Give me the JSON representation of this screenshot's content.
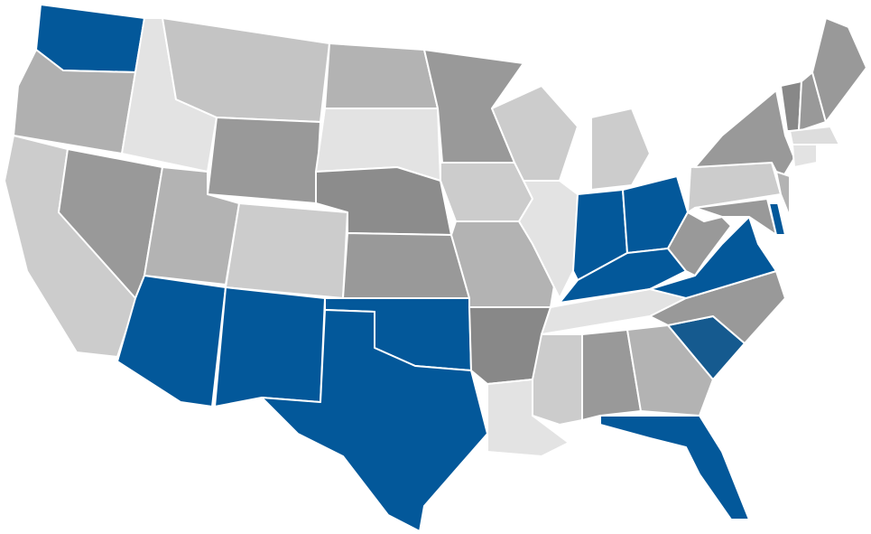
{
  "map": {
    "regions": [
      {
        "color": "#03589a"
      },
      {
        "color": "#b0b0b0"
      },
      {
        "color": "#cccccc"
      },
      {
        "color": "#e3e3e3"
      },
      {
        "color": "#999999"
      },
      {
        "color": "#c4c4c4"
      },
      {
        "color": "#999999"
      },
      {
        "color": "#b3b3b3"
      },
      {
        "color": "#cccccc"
      },
      {
        "color": "#03589a"
      },
      {
        "color": "#03589a"
      },
      {
        "color": "#b3b3b3"
      },
      {
        "color": "#e3e3e3"
      },
      {
        "color": "#8c8c8c"
      },
      {
        "color": "#999999"
      },
      {
        "color": "#03589a"
      },
      {
        "color": "#03589a"
      },
      {
        "color": "#999999"
      },
      {
        "color": "#cccccc"
      },
      {
        "color": "#b3b3b3"
      },
      {
        "color": "#888888"
      },
      {
        "color": "#e3e3e3"
      },
      {
        "color": "#cccccc"
      },
      {
        "color": "#e3e3e3"
      },
      {
        "color": "#cccccc"
      },
      {
        "color": "#03589a"
      },
      {
        "color": "#03589a"
      },
      {
        "color": "#03589a"
      },
      {
        "color": "#e3e3e3"
      },
      {
        "color": "#cccccc"
      },
      {
        "color": "#999999"
      },
      {
        "color": "#b3b3b3"
      },
      {
        "color": "#03589a"
      },
      {
        "color": "#155a8f"
      },
      {
        "color": "#999999"
      },
      {
        "color": "#03589a"
      },
      {
        "color": "#999999"
      },
      {
        "color": "#cccccc"
      },
      {
        "color": "#999999"
      },
      {
        "color": "#999999"
      },
      {
        "color": "#03589a"
      },
      {
        "color": "#b3b3b3"
      },
      {
        "color": "#888888"
      },
      {
        "color": "#999999"
      },
      {
        "color": "#999999"
      },
      {
        "color": "#dddddd"
      },
      {
        "color": "#e3e3e3"
      }
    ]
  }
}
